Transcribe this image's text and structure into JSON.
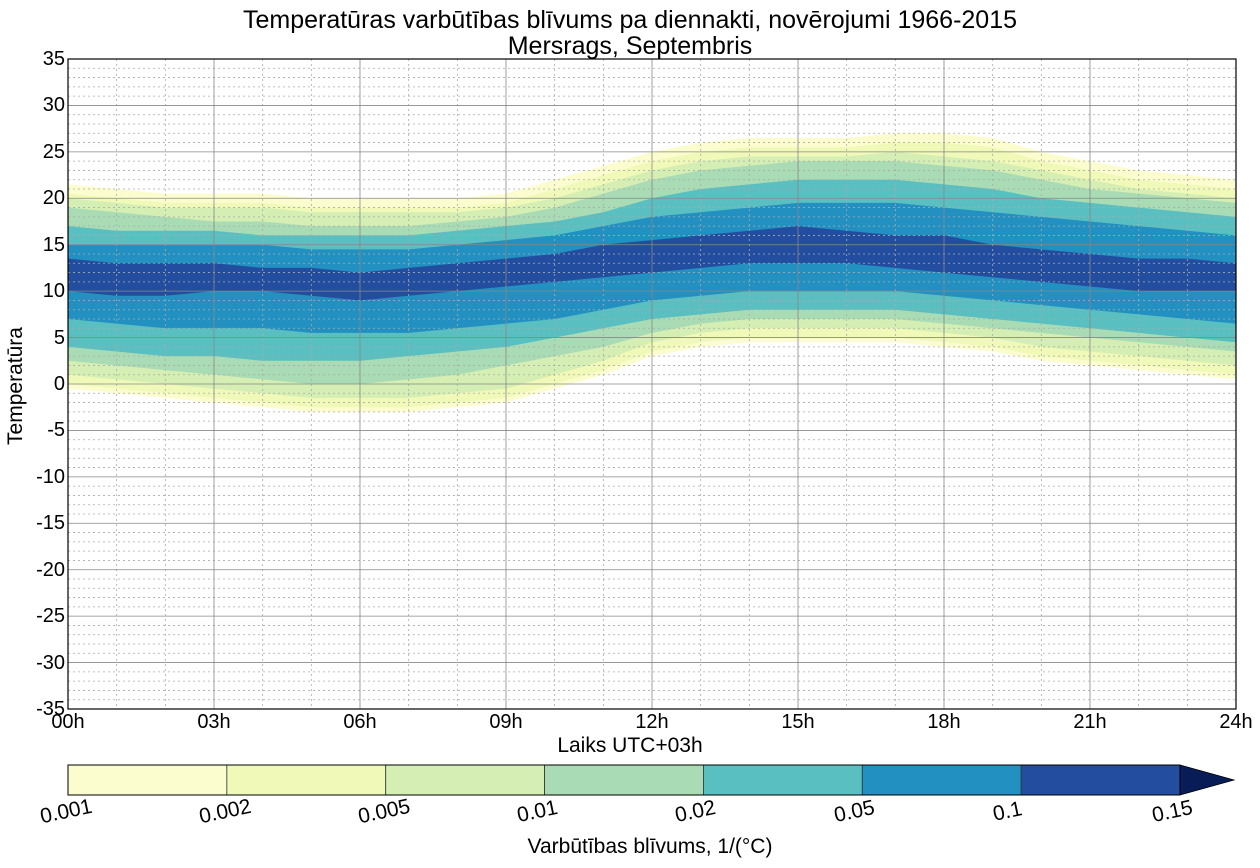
{
  "chart_data": {
    "type": "contour",
    "title": "Temperatūras varbūtības blīvums pa diennakti, novērojumi 1966-2015",
    "subtitle": "Mersrags, Septembris",
    "xlabel": "Laiks UTC+03h",
    "ylabel": "Temperatūra",
    "x_ticks": [
      "00h",
      "03h",
      "06h",
      "09h",
      "12h",
      "15h",
      "18h",
      "21h",
      "24h"
    ],
    "x_hours": [
      0,
      3,
      6,
      9,
      12,
      15,
      18,
      21,
      24
    ],
    "y_ticks": [
      35,
      30,
      25,
      20,
      15,
      10,
      5,
      0,
      -5,
      -10,
      -15,
      -20,
      -25,
      -30,
      -35
    ],
    "ylim": [
      -35,
      35
    ],
    "xlim": [
      0,
      24
    ],
    "grid": true,
    "density_levels": [
      0.001,
      0.002,
      0.005,
      0.01,
      0.02,
      0.05,
      0.1,
      0.15
    ],
    "level_colors": [
      "#fcfdce",
      "#f0f9b8",
      "#d5eeb3",
      "#a9dbb4",
      "#5abfc0",
      "#2290c1",
      "#234ea0",
      "#081d58"
    ],
    "colorbar_ticks": [
      "0.001",
      "0.002",
      "0.005",
      "0.01",
      "0.02",
      "0.05",
      "0.1",
      "0.15"
    ],
    "colorbar_label": "Varbūtības blīvums, 1/(°C)",
    "colorbar_extend": "max",
    "bands_hours": [
      0,
      1,
      2,
      3,
      4,
      5,
      6,
      7,
      8,
      9,
      10,
      11,
      12,
      13,
      14,
      15,
      16,
      17,
      18,
      19,
      20,
      21,
      22,
      23,
      24
    ],
    "bands": [
      {
        "level": "0.001",
        "upper": [
          21.5,
          21,
          20.5,
          20.5,
          20.5,
          20,
          20,
          20,
          20,
          20.5,
          22,
          23.5,
          25,
          26,
          26.5,
          26.5,
          26.5,
          27,
          27,
          26.5,
          25,
          24,
          23,
          22.5,
          22
        ],
        "lower": [
          -0.5,
          -1,
          -1.5,
          -2,
          -2.5,
          -3,
          -3,
          -3,
          -2.5,
          -2,
          -0.5,
          1,
          3,
          4,
          4.5,
          4.5,
          4.5,
          4.5,
          4,
          3.5,
          2.5,
          2,
          1.5,
          1,
          0.5
        ]
      },
      {
        "level": "0.002",
        "upper": [
          20.5,
          20,
          19.5,
          19.5,
          19.5,
          19,
          19,
          19,
          19,
          19.5,
          21,
          22.5,
          24,
          25,
          25.5,
          25.5,
          25.5,
          26,
          26,
          25.5,
          24,
          23,
          22,
          21.5,
          21
        ],
        "lower": [
          0,
          -0.5,
          -1,
          -1.5,
          -2,
          -2.5,
          -2.5,
          -2.5,
          -2,
          -1.5,
          0,
          1.5,
          3.5,
          4.5,
          5,
          5,
          5,
          5,
          4.5,
          4,
          3,
          2.5,
          2,
          1.5,
          1
        ]
      },
      {
        "level": "0.005",
        "upper": [
          20,
          19.5,
          19,
          19,
          19,
          18.5,
          18.5,
          18.5,
          18.5,
          19,
          20,
          21.5,
          23,
          24,
          24.5,
          24.5,
          24.5,
          25,
          24.5,
          24,
          23,
          22,
          21,
          20.5,
          20
        ],
        "lower": [
          1,
          0.5,
          0,
          -0.5,
          -1,
          -1.5,
          -1.5,
          -1.5,
          -1,
          -0.5,
          1,
          2.5,
          4.5,
          5.5,
          6,
          6,
          6,
          6,
          5.5,
          5,
          4,
          3.5,
          3,
          2.5,
          2
        ]
      },
      {
        "level": "0.01",
        "upper": [
          19,
          18.5,
          18,
          17.5,
          17.5,
          17,
          17,
          17,
          17.5,
          18,
          19,
          20.5,
          22,
          23,
          23.5,
          24,
          24,
          24,
          23.5,
          23,
          22,
          21,
          20.5,
          20,
          19.5
        ],
        "lower": [
          2.5,
          2,
          1.5,
          1,
          0.5,
          0,
          0,
          0.5,
          1,
          2,
          3,
          4,
          5.5,
          6.5,
          7,
          7,
          7,
          7,
          6.5,
          6,
          5.5,
          5,
          4.5,
          4,
          3.5
        ]
      },
      {
        "level": "0.02",
        "upper": [
          17,
          16.5,
          16.5,
          16.5,
          16,
          16,
          16,
          16,
          16.5,
          17,
          17.5,
          18.5,
          20,
          21,
          21.5,
          22,
          22,
          22,
          21.5,
          21,
          20,
          19.5,
          19,
          18.5,
          18
        ],
        "lower": [
          4,
          3.5,
          3,
          3,
          2.5,
          2.5,
          2.5,
          3,
          3.5,
          4,
          5,
          6,
          7,
          7.5,
          8,
          8,
          8,
          8,
          7.5,
          7,
          6.5,
          6,
          5.5,
          5,
          4.5
        ]
      },
      {
        "level": "0.05",
        "upper": [
          15,
          15,
          15,
          15,
          15,
          14.5,
          14.5,
          14.5,
          15,
          15.5,
          16,
          17,
          18,
          18.5,
          19,
          19.5,
          19.5,
          19.5,
          19,
          18.5,
          18,
          17.5,
          17,
          16.5,
          16
        ],
        "lower": [
          7,
          6.5,
          6,
          6,
          6,
          5.5,
          5.5,
          5.5,
          6,
          6.5,
          7,
          8,
          9,
          9.5,
          10,
          10,
          10,
          10,
          9.5,
          9,
          8.5,
          8,
          7.5,
          7,
          6.5
        ]
      },
      {
        "level": "0.1",
        "upper": [
          13.5,
          13,
          13,
          13,
          12.5,
          12.5,
          12,
          12.5,
          13,
          13.5,
          14,
          15,
          15.5,
          16,
          16.5,
          17,
          16.5,
          16,
          16,
          15,
          14.5,
          14,
          13.5,
          13.5,
          13
        ],
        "lower": [
          10,
          9.5,
          9.5,
          10,
          10,
          9.5,
          9,
          9.5,
          10,
          10.5,
          11,
          11.5,
          12,
          12.5,
          13,
          13,
          13,
          12.5,
          12,
          11.5,
          11,
          10.5,
          10,
          10,
          10
        ]
      }
    ]
  }
}
